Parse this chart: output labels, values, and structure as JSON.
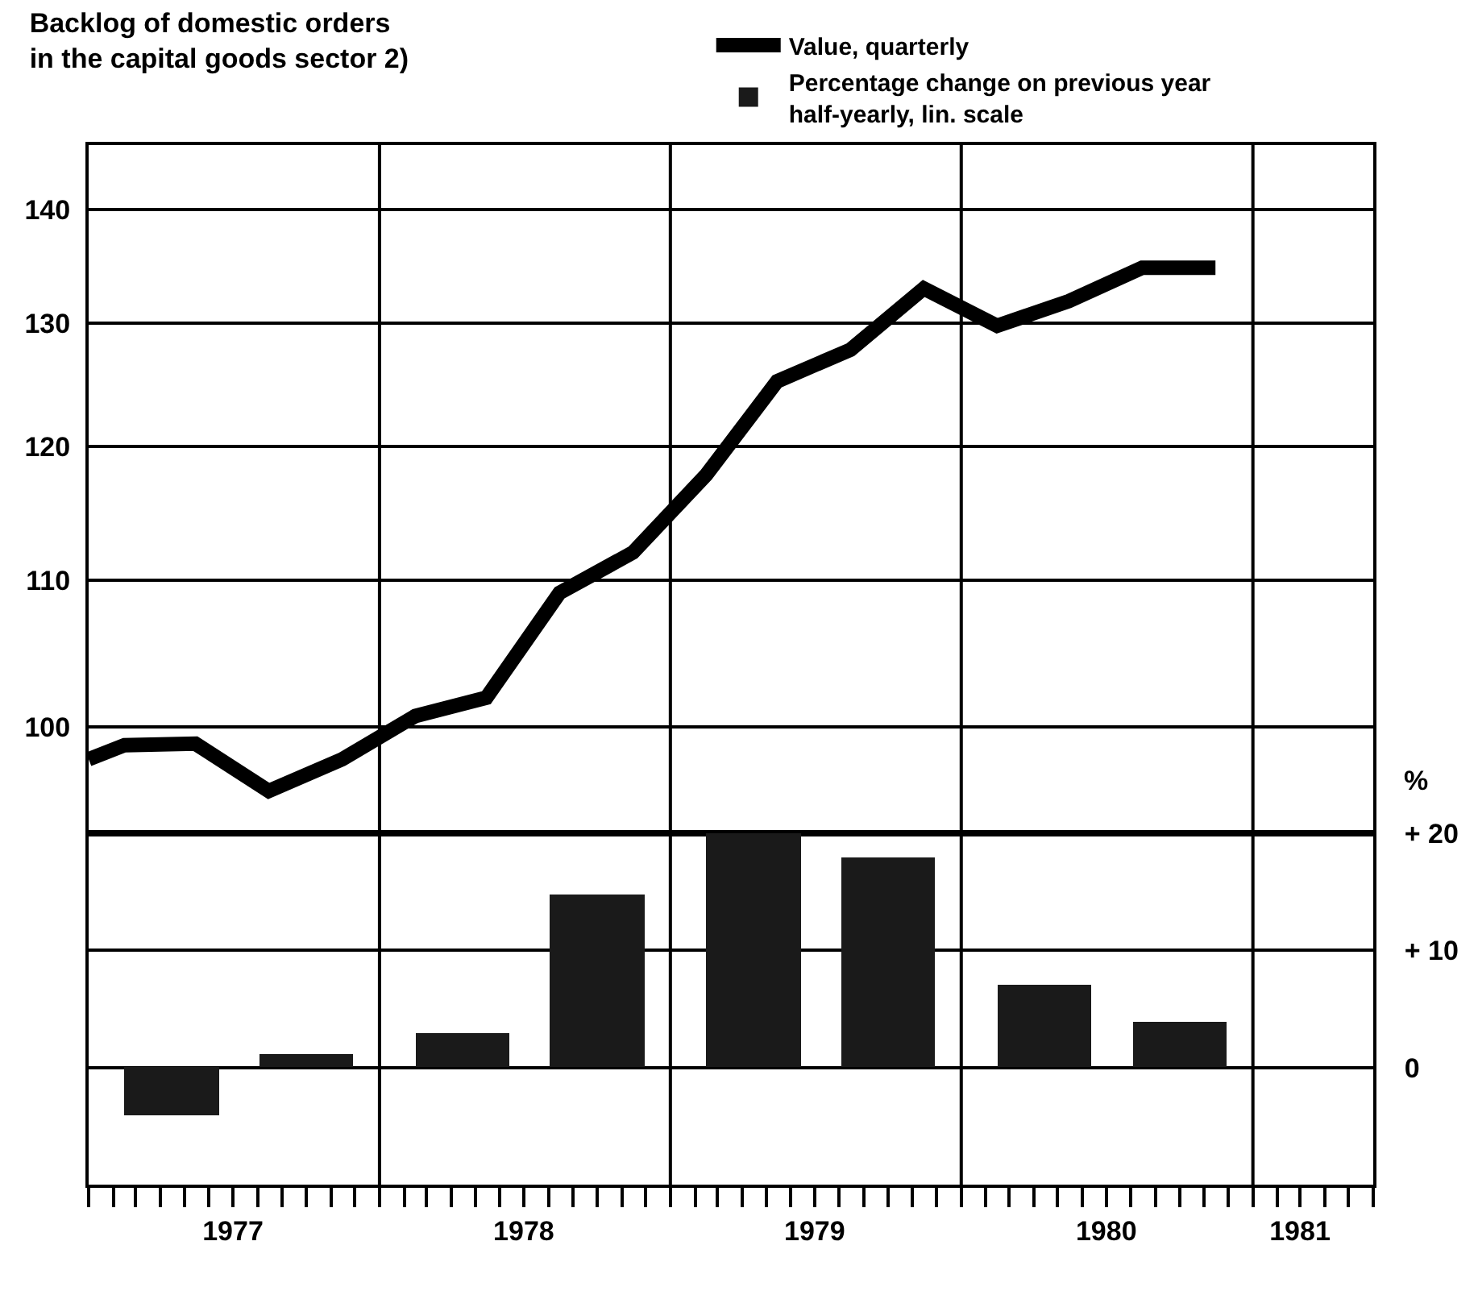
{
  "chart_data": [
    {
      "type": "line",
      "title": "Backlog of domestic orders\nin the capital goods sector 2)",
      "legend": "top right",
      "grid": "y",
      "tick_labels": "y",
      "xlim": [
        "1977-01-01",
        "1981-06-01"
      ],
      "log": true,
      "ylim": [
        93.3,
        146
      ],
      "yticks": [
        100,
        110,
        120,
        130,
        140
      ],
      "ref_lines": [
        {
          "axis": "x",
          "value": "1978-01-01",
          "color": "#000000"
        },
        {
          "axis": "x",
          "value": "1979-01-01",
          "color": "#000000"
        },
        {
          "axis": "x",
          "value": "1980-01-01",
          "color": "#000000"
        },
        {
          "axis": "x",
          "value": "1981-01-01",
          "color": "#000000"
        }
      ],
      "series": [
        {
          "name": "Value, quarterly",
          "color": "#000000",
          "line_style": "solid",
          "marker": "none",
          "x": [
            "1977-01-01",
            "1977-02-15",
            "1977-05-15",
            "1977-08-15",
            "1977-11-15",
            "1978-02-15",
            "1978-05-15",
            "1978-08-15",
            "1978-11-15",
            "1979-02-15",
            "1979-05-15",
            "1979-08-15",
            "1979-11-15",
            "1980-02-15",
            "1980-05-15",
            "1980-08-15",
            "1980-11-15"
          ],
          "values": [
            97.9,
            98.8,
            98.9,
            95.9,
            97.9,
            100.7,
            101.9,
            109.1,
            112.0,
            117.8,
            125.2,
            127.8,
            133.0,
            129.8,
            131.9,
            134.8,
            134.8
          ]
        }
      ]
    },
    {
      "type": "bar",
      "ylabel": "%",
      "legend": "top right",
      "grid": "y",
      "xlim": [
        "1977-01-01",
        "1981-06-01"
      ],
      "xticks": [
        {
          "value": "1977-07-01",
          "label": "1977"
        },
        {
          "value": "1978-07-01",
          "label": "1978"
        },
        {
          "value": "1979-07-01",
          "label": "1979"
        },
        {
          "value": "1980-07-01",
          "label": "1980"
        },
        {
          "value": "1981-03-01",
          "label": "1981"
        }
      ],
      "ylim": [
        -10,
        20
      ],
      "yticks": [
        {
          "value": 20,
          "label": "+ 20"
        },
        {
          "value": 10,
          "label": "+ 10"
        },
        0
      ],
      "ref_lines": [
        {
          "axis": "x",
          "value": "1978-01-01",
          "color": "#000000"
        },
        {
          "axis": "x",
          "value": "1979-01-01",
          "color": "#000000"
        },
        {
          "axis": "x",
          "value": "1980-01-01",
          "color": "#000000"
        },
        {
          "axis": "x",
          "value": "1981-01-01",
          "color": "#000000"
        }
      ],
      "series": [
        {
          "name": "Percentage change on previous year\nhalf-yearly, lin. scale",
          "color": "#1a1a1a",
          "x": [
            "1977-04-15",
            "1977-10-01",
            "1978-04-15",
            "1978-10-01",
            "1979-04-15",
            "1979-10-01",
            "1980-04-15",
            "1980-10-01"
          ],
          "values": [
            -4.1,
            1.1,
            3.0,
            14.8,
            20.0,
            18.0,
            7.0,
            3.9
          ]
        }
      ]
    }
  ]
}
